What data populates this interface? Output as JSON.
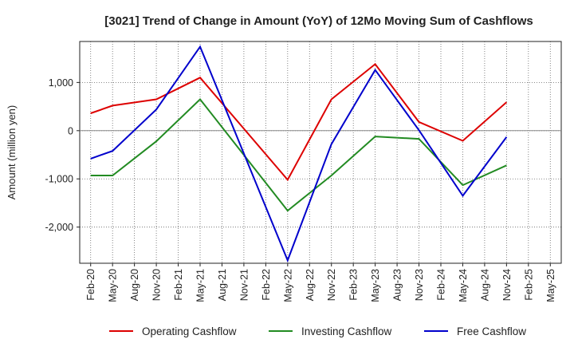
{
  "chart_data": {
    "type": "line",
    "title": "[3021]  Trend of Change in Amount (YoY) of 12Mo Moving Sum of Cashflows",
    "xlabel": "",
    "ylabel": "Amount (million yen)",
    "ylim": [
      -2750,
      1850
    ],
    "yticks": [
      1000,
      0,
      -1000,
      -2000
    ],
    "ytick_labels": [
      "1,000",
      "0",
      "-1,000",
      "-2,000"
    ],
    "categories": [
      "Feb-20",
      "May-20",
      "Aug-20",
      "Nov-20",
      "Feb-21",
      "May-21",
      "Aug-21",
      "Nov-21",
      "Feb-22",
      "May-22",
      "Aug-22",
      "Nov-22",
      "Feb-23",
      "May-23",
      "Aug-23",
      "Nov-23",
      "Feb-24",
      "May-24",
      "Aug-24",
      "Nov-24",
      "Feb-25",
      "May-25"
    ],
    "grid": true,
    "legend_position": "bottom",
    "series": [
      {
        "name": "Operating Cashflow",
        "color": "#dd0000",
        "points": [
          [
            0,
            360
          ],
          [
            1,
            520
          ],
          [
            3,
            650
          ],
          [
            5,
            1100
          ],
          [
            9,
            -1020
          ],
          [
            11,
            650
          ],
          [
            13,
            1380
          ],
          [
            15,
            180
          ],
          [
            17,
            -210
          ],
          [
            19,
            590
          ]
        ]
      },
      {
        "name": "Investing Cashflow",
        "color": "#228b22",
        "points": [
          [
            0,
            -930
          ],
          [
            1,
            -930
          ],
          [
            3,
            -220
          ],
          [
            5,
            650
          ],
          [
            9,
            -1660
          ],
          [
            11,
            -930
          ],
          [
            13,
            -120
          ],
          [
            15,
            -170
          ],
          [
            17,
            -1130
          ],
          [
            19,
            -720
          ]
        ]
      },
      {
        "name": "Free Cashflow",
        "color": "#0000cc",
        "points": [
          [
            0,
            -580
          ],
          [
            1,
            -420
          ],
          [
            3,
            440
          ],
          [
            5,
            1740
          ],
          [
            9,
            -2690
          ],
          [
            11,
            -280
          ],
          [
            13,
            1260
          ],
          [
            15,
            10
          ],
          [
            17,
            -1350
          ],
          [
            19,
            -130
          ]
        ]
      }
    ]
  }
}
